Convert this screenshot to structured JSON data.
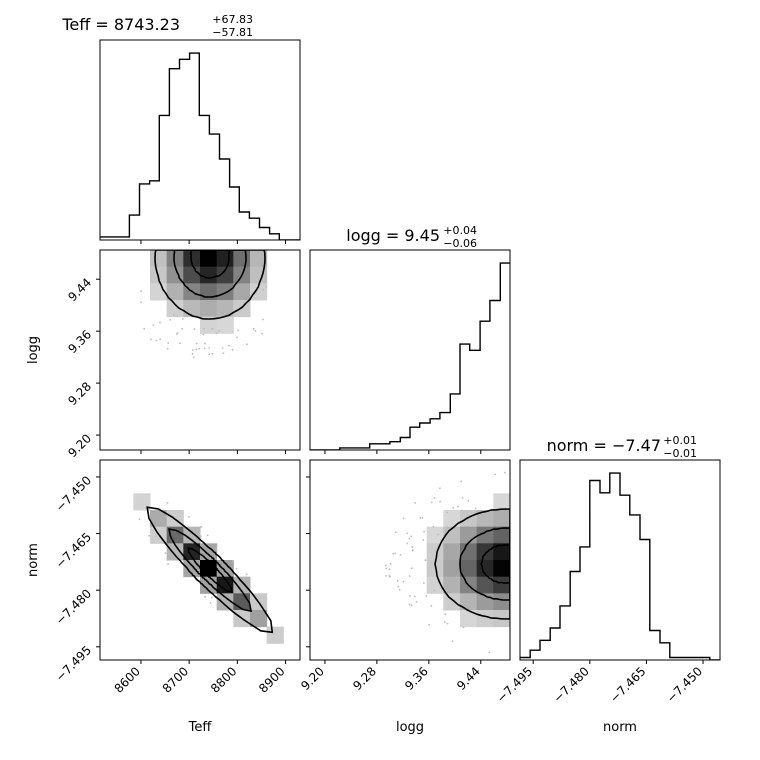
{
  "chart_data": {
    "type": "corner",
    "parameters": [
      {
        "name": "Teff",
        "range": [
          8515,
          8930
        ],
        "ticks": [
          8600,
          8700,
          8800,
          8900
        ],
        "tick_labels": [
          "8600",
          "8700",
          "8800",
          "8900"
        ]
      },
      {
        "name": "logg",
        "range": [
          9.177,
          9.485
        ],
        "ticks": [
          9.2,
          9.28,
          9.36,
          9.44
        ],
        "tick_labels": [
          "9.20",
          "9.28",
          "9.36",
          "9.44"
        ]
      },
      {
        "name": "norm",
        "range": [
          -7.4985,
          -7.4455
        ],
        "ticks": [
          -7.495,
          -7.48,
          -7.465,
          -7.45
        ],
        "tick_labels": [
          "−7.495",
          "−7.480",
          "−7.465",
          "−7.450"
        ]
      }
    ],
    "titles": [
      {
        "main": "Teff = 8743.23",
        "sup": "+67.83",
        "sub": "−57.81"
      },
      {
        "main": "logg = 9.45",
        "sup": "+0.04",
        "sub": "−0.06"
      },
      {
        "main": "norm = −7.47",
        "sup": "+0.01",
        "sub": "−0.01"
      }
    ],
    "histograms": [
      {
        "param": "Teff",
        "bins": [
          8515,
          8535,
          8555,
          8576,
          8597,
          8618,
          8638,
          8659,
          8680,
          8701,
          8721,
          8742,
          8763,
          8784,
          8804,
          8825,
          8846,
          8867,
          8887,
          8908,
          8930
        ],
        "counts": [
          1,
          1,
          1,
          8,
          18,
          19,
          40,
          55,
          58,
          60,
          40,
          34,
          26,
          17,
          9,
          7,
          4,
          2,
          0,
          0
        ]
      },
      {
        "param": "logg",
        "bins": [
          9.177,
          9.192,
          9.208,
          9.223,
          9.239,
          9.254,
          9.269,
          9.285,
          9.3,
          9.316,
          9.331,
          9.346,
          9.362,
          9.377,
          9.393,
          9.408,
          9.423,
          9.439,
          9.454,
          9.47,
          9.485
        ],
        "counts": [
          0,
          0,
          0,
          1,
          1,
          1,
          3,
          3,
          4,
          6,
          11,
          13,
          15,
          18,
          27,
          51,
          48,
          62,
          72,
          90
        ]
      },
      {
        "param": "norm",
        "bins": [
          -7.4985,
          -7.4958,
          -7.4932,
          -7.4905,
          -7.4879,
          -7.4852,
          -7.4826,
          -7.48,
          -7.4773,
          -7.4747,
          -7.472,
          -7.4694,
          -7.4667,
          -7.4641,
          -7.4614,
          -7.4588,
          -7.4562,
          -7.4535,
          -7.4509,
          -7.4482,
          -7.4455
        ],
        "counts": [
          1,
          4,
          8,
          13,
          22,
          36,
          46,
          73,
          68,
          76,
          67,
          59,
          49,
          12,
          7,
          1,
          1,
          1,
          1,
          0
        ]
      }
    ],
    "scatter_panels": [
      {
        "x": "Teff",
        "y": "logg",
        "contour_levels": 3,
        "peak": [
          8743,
          9.465
        ]
      },
      {
        "x": "Teff",
        "y": "norm",
        "contour_levels": 3,
        "peak": [
          8743,
          -7.474
        ]
      },
      {
        "x": "logg",
        "y": "norm",
        "contour_levels": 3,
        "peak": [
          9.46,
          -7.472
        ]
      }
    ],
    "colors": {
      "line": "#000000",
      "density_dark": "#000000",
      "density_light": "#dcdcdc",
      "background": "#ffffff"
    }
  }
}
